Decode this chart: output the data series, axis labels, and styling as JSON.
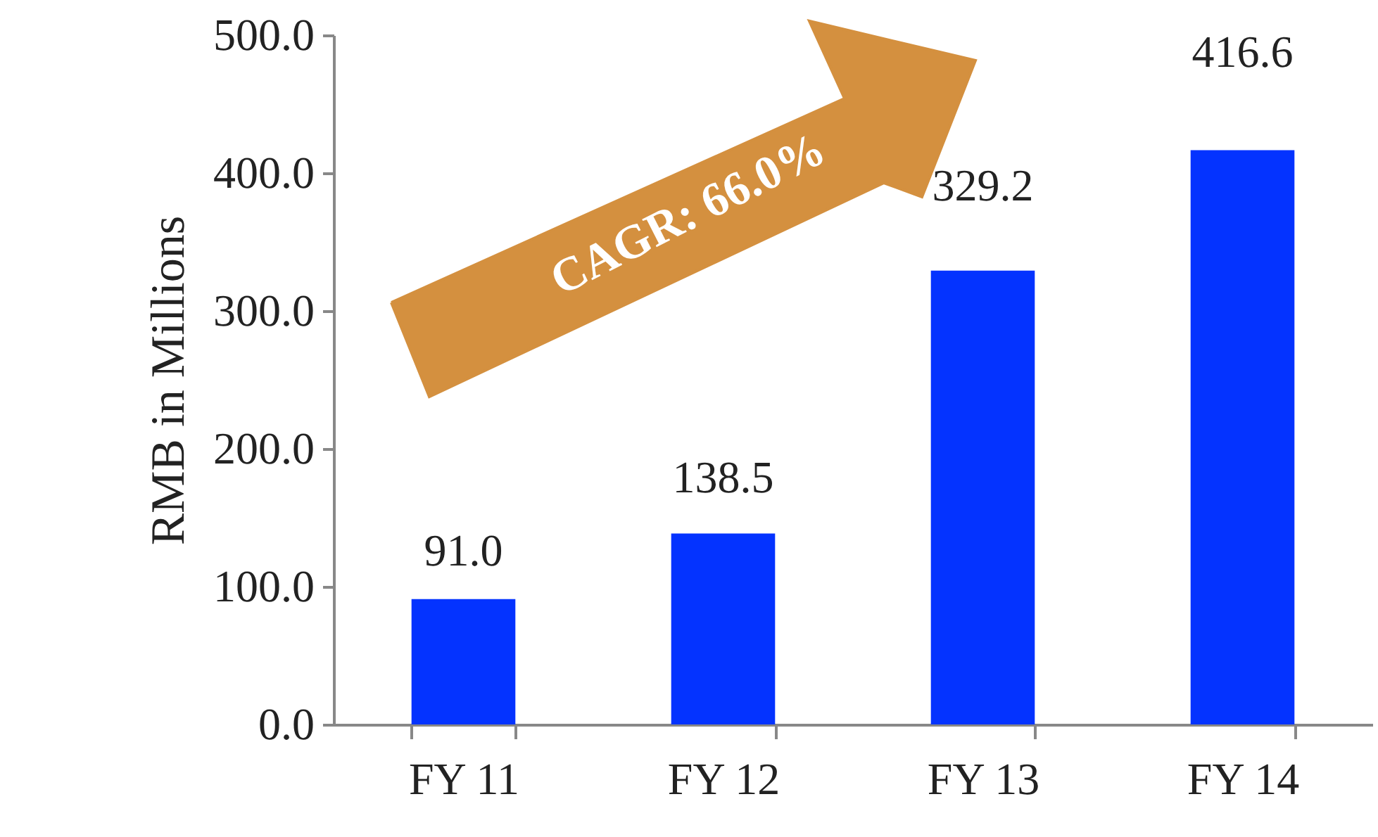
{
  "chart_data": {
    "type": "bar",
    "ylabel": "RMB in Millions",
    "categories": [
      "FY 11",
      "FY 12",
      "FY 13",
      "FY 14"
    ],
    "values": [
      91.0,
      138.5,
      329.2,
      416.6
    ],
    "color": "#0433ff",
    "data_labels": true,
    "value_labels": [
      "91.0",
      "138.5",
      "329.2",
      "416.6"
    ],
    "ylim": [
      0,
      500
    ],
    "yticks": [
      {
        "value": 0,
        "label": "0.0"
      },
      {
        "value": 100,
        "label": "100.0"
      },
      {
        "value": 200,
        "label": "200.0"
      },
      {
        "value": 300,
        "label": "300.0"
      },
      {
        "value": 400,
        "label": "400.0"
      },
      {
        "value": 500,
        "label": "500.0"
      }
    ],
    "grid": false,
    "annotations": [
      "CAGR: 66.0%"
    ]
  }
}
